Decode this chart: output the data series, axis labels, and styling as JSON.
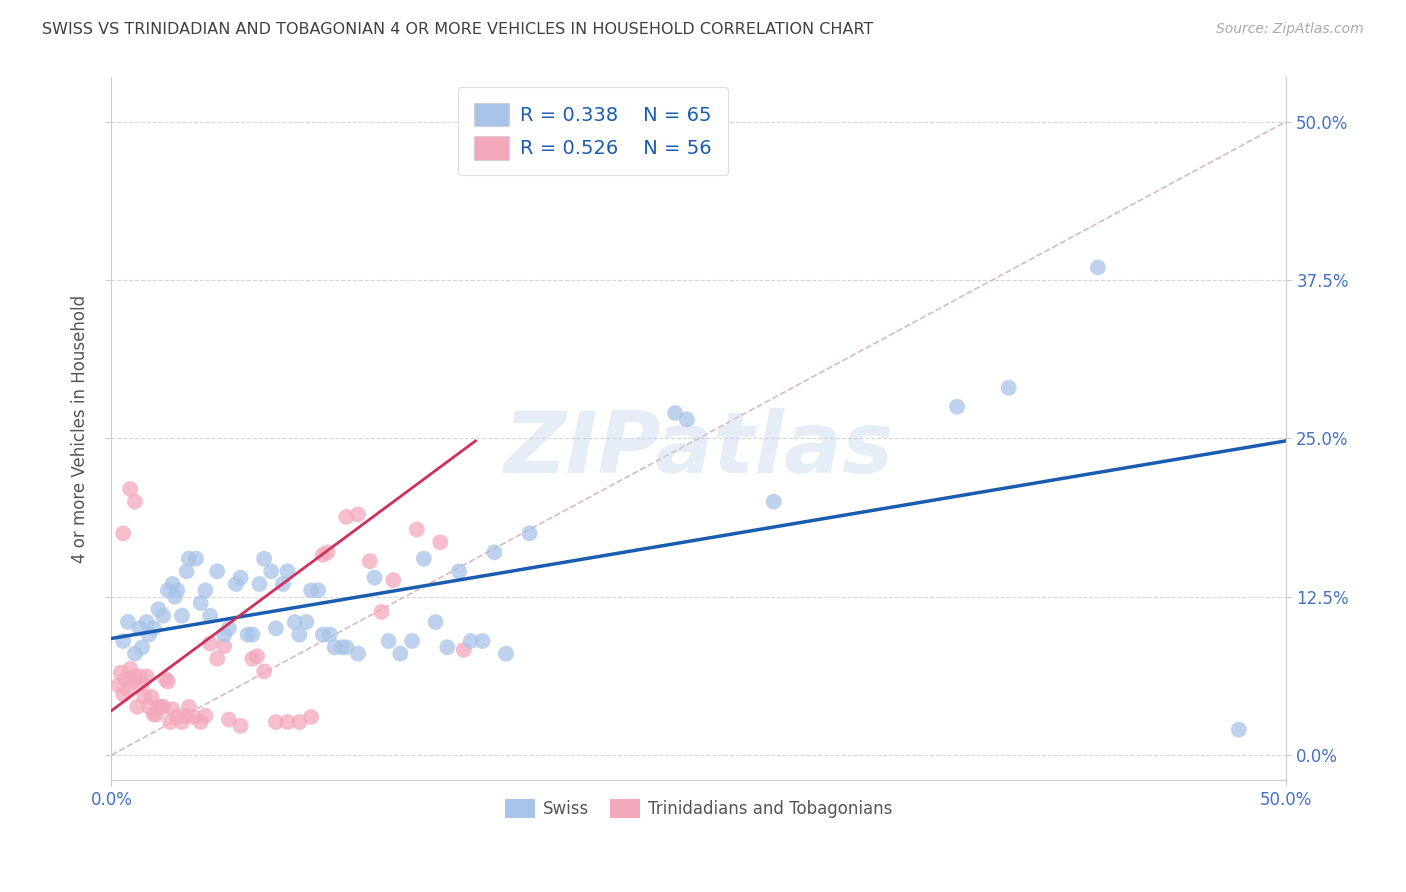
{
  "title": "SWISS VS TRINIDADIAN AND TOBAGONIAN 4 OR MORE VEHICLES IN HOUSEHOLD CORRELATION CHART",
  "source": "Source: ZipAtlas.com",
  "ylabel": "4 or more Vehicles in Household",
  "xlim": [
    0.0,
    0.5
  ],
  "ylim": [
    -0.02,
    0.535
  ],
  "swiss_R": "0.338",
  "swiss_N": "65",
  "trin_R": "0.526",
  "trin_N": "56",
  "swiss_color": "#a8c4e8",
  "trin_color": "#f4a8bc",
  "swiss_line_color": "#1a5cb0",
  "trin_line_color": "#d0305a",
  "diagonal_color": "#d8b0b8",
  "background_color": "#ffffff",
  "grid_color": "#cccccc",
  "axis_tick_color": "#4472c4",
  "title_color": "#404040",
  "watermark": "ZIPatlas",
  "legend_labels": [
    "Swiss",
    "Trinidadians and Tobagonians"
  ],
  "xtick_vals": [
    0.0,
    0.5
  ],
  "xtick_labels": [
    "0.0%",
    "50.0%"
  ],
  "ytick_vals": [
    0.0,
    0.125,
    0.25,
    0.375,
    0.5
  ],
  "right_ytick_labels": [
    "0.0%",
    "12.5%",
    "25.0%",
    "37.5%",
    "50.0%"
  ],
  "swiss_points": [
    [
      0.005,
      0.09
    ],
    [
      0.007,
      0.105
    ],
    [
      0.01,
      0.08
    ],
    [
      0.012,
      0.1
    ],
    [
      0.013,
      0.085
    ],
    [
      0.015,
      0.105
    ],
    [
      0.016,
      0.095
    ],
    [
      0.018,
      0.1
    ],
    [
      0.02,
      0.115
    ],
    [
      0.022,
      0.11
    ],
    [
      0.024,
      0.13
    ],
    [
      0.026,
      0.135
    ],
    [
      0.027,
      0.125
    ],
    [
      0.028,
      0.13
    ],
    [
      0.03,
      0.11
    ],
    [
      0.032,
      0.145
    ],
    [
      0.033,
      0.155
    ],
    [
      0.036,
      0.155
    ],
    [
      0.038,
      0.12
    ],
    [
      0.04,
      0.13
    ],
    [
      0.042,
      0.11
    ],
    [
      0.045,
      0.145
    ],
    [
      0.048,
      0.095
    ],
    [
      0.05,
      0.1
    ],
    [
      0.053,
      0.135
    ],
    [
      0.055,
      0.14
    ],
    [
      0.058,
      0.095
    ],
    [
      0.06,
      0.095
    ],
    [
      0.063,
      0.135
    ],
    [
      0.065,
      0.155
    ],
    [
      0.068,
      0.145
    ],
    [
      0.07,
      0.1
    ],
    [
      0.073,
      0.135
    ],
    [
      0.075,
      0.145
    ],
    [
      0.078,
      0.105
    ],
    [
      0.08,
      0.095
    ],
    [
      0.083,
      0.105
    ],
    [
      0.085,
      0.13
    ],
    [
      0.088,
      0.13
    ],
    [
      0.09,
      0.095
    ],
    [
      0.093,
      0.095
    ],
    [
      0.095,
      0.085
    ],
    [
      0.098,
      0.085
    ],
    [
      0.1,
      0.085
    ],
    [
      0.105,
      0.08
    ],
    [
      0.112,
      0.14
    ],
    [
      0.118,
      0.09
    ],
    [
      0.123,
      0.08
    ],
    [
      0.128,
      0.09
    ],
    [
      0.133,
      0.155
    ],
    [
      0.138,
      0.105
    ],
    [
      0.143,
      0.085
    ],
    [
      0.148,
      0.145
    ],
    [
      0.153,
      0.09
    ],
    [
      0.158,
      0.09
    ],
    [
      0.163,
      0.16
    ],
    [
      0.168,
      0.08
    ],
    [
      0.178,
      0.175
    ],
    [
      0.24,
      0.27
    ],
    [
      0.245,
      0.265
    ],
    [
      0.282,
      0.2
    ],
    [
      0.36,
      0.275
    ],
    [
      0.382,
      0.29
    ],
    [
      0.42,
      0.385
    ],
    [
      0.48,
      0.02
    ]
  ],
  "trin_points": [
    [
      0.003,
      0.055
    ],
    [
      0.004,
      0.065
    ],
    [
      0.005,
      0.048
    ],
    [
      0.006,
      0.06
    ],
    [
      0.007,
      0.052
    ],
    [
      0.008,
      0.068
    ],
    [
      0.009,
      0.058
    ],
    [
      0.01,
      0.062
    ],
    [
      0.011,
      0.038
    ],
    [
      0.012,
      0.062
    ],
    [
      0.013,
      0.056
    ],
    [
      0.014,
      0.046
    ],
    [
      0.015,
      0.062
    ],
    [
      0.016,
      0.038
    ],
    [
      0.017,
      0.046
    ],
    [
      0.018,
      0.032
    ],
    [
      0.019,
      0.032
    ],
    [
      0.02,
      0.038
    ],
    [
      0.021,
      0.038
    ],
    [
      0.022,
      0.038
    ],
    [
      0.023,
      0.06
    ],
    [
      0.024,
      0.058
    ],
    [
      0.025,
      0.026
    ],
    [
      0.026,
      0.036
    ],
    [
      0.028,
      0.03
    ],
    [
      0.03,
      0.026
    ],
    [
      0.032,
      0.031
    ],
    [
      0.033,
      0.038
    ],
    [
      0.035,
      0.03
    ],
    [
      0.038,
      0.026
    ],
    [
      0.04,
      0.031
    ],
    [
      0.042,
      0.088
    ],
    [
      0.045,
      0.076
    ],
    [
      0.048,
      0.086
    ],
    [
      0.05,
      0.028
    ],
    [
      0.055,
      0.023
    ],
    [
      0.06,
      0.076
    ],
    [
      0.062,
      0.078
    ],
    [
      0.065,
      0.066
    ],
    [
      0.07,
      0.026
    ],
    [
      0.075,
      0.026
    ],
    [
      0.08,
      0.026
    ],
    [
      0.005,
      0.175
    ],
    [
      0.008,
      0.21
    ],
    [
      0.01,
      0.2
    ],
    [
      0.09,
      0.158
    ],
    [
      0.092,
      0.16
    ],
    [
      0.1,
      0.188
    ],
    [
      0.105,
      0.19
    ],
    [
      0.11,
      0.153
    ],
    [
      0.115,
      0.113
    ],
    [
      0.12,
      0.138
    ],
    [
      0.13,
      0.178
    ],
    [
      0.14,
      0.168
    ],
    [
      0.15,
      0.083
    ],
    [
      0.085,
      0.03
    ]
  ],
  "swiss_line_x": [
    0.0,
    0.5
  ],
  "swiss_line_y": [
    0.092,
    0.248
  ],
  "trin_line_x": [
    0.0,
    0.155
  ],
  "trin_line_y": [
    0.035,
    0.248
  ],
  "diag_line_x": [
    0.0,
    0.5
  ],
  "diag_line_y": [
    0.0,
    0.5
  ]
}
